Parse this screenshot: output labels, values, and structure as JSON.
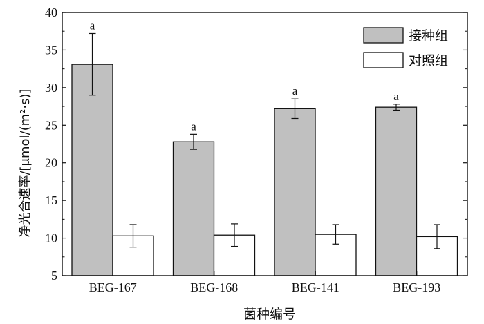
{
  "chart_data": {
    "type": "bar",
    "categories": [
      "BEG-167",
      "BEG-168",
      "BEG-141",
      "BEG-193"
    ],
    "series": [
      {
        "name": "接种组",
        "color": "#c0c0c0",
        "values": [
          33.1,
          22.8,
          27.2,
          27.4
        ],
        "errors": [
          4.1,
          1.0,
          1.3,
          0.4
        ],
        "labels": [
          "a",
          "a",
          "a",
          "a"
        ]
      },
      {
        "name": "对照组",
        "color": "#ffffff",
        "values": [
          10.3,
          10.4,
          10.5,
          10.2
        ],
        "errors": [
          1.5,
          1.5,
          1.3,
          1.6
        ],
        "labels": [
          "",
          "",
          "",
          ""
        ]
      }
    ],
    "xlabel": "菌种编号",
    "ylabel": "净光合速率/[μmol/(m²·s)]",
    "ylim": [
      5,
      40
    ],
    "yticks": [
      5,
      10,
      15,
      20,
      25,
      30,
      35,
      40
    ],
    "grid": false,
    "legend": "top-right"
  }
}
